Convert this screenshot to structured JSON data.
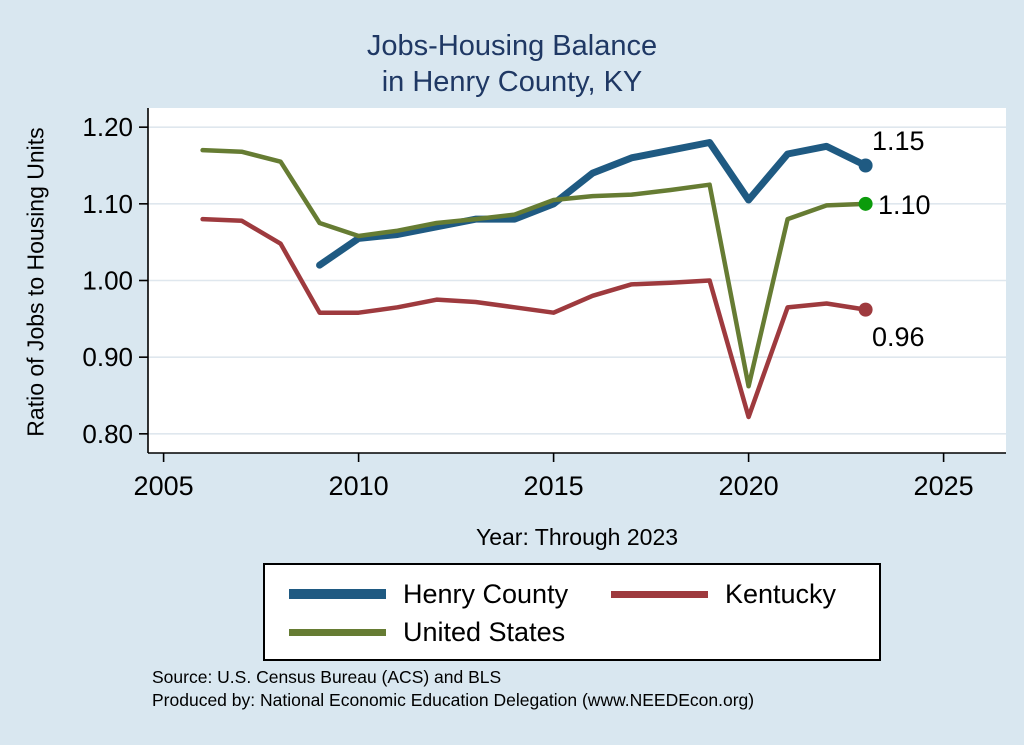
{
  "title": {
    "line1": "Jobs-Housing Balance",
    "line2": "in Henry County, KY"
  },
  "axes": {
    "y_label": "Ratio of Jobs to Housing Units",
    "x_label": "Year: Through 2023",
    "y_ticks": {
      "values": [
        0.8,
        0.9,
        1.0,
        1.1,
        1.2
      ],
      "labels": [
        "0.80",
        "0.90",
        "1.00",
        "1.10",
        "1.20"
      ]
    },
    "x_ticks": {
      "values": [
        2005,
        2010,
        2015,
        2020,
        2025
      ],
      "labels": [
        "2005",
        "2010",
        "2015",
        "2020",
        "2025"
      ]
    }
  },
  "chart_data": {
    "type": "line",
    "title": "Jobs-Housing Balance in Henry County, KY",
    "xlabel": "Year: Through 2023",
    "ylabel": "Ratio of Jobs to Housing Units",
    "xlim": [
      2005,
      2025
    ],
    "ylim": [
      0.8,
      1.2
    ],
    "grid": true,
    "legend_position": "bottom",
    "series": [
      {
        "name": "Henry County",
        "color": "#1f5a82",
        "end_marker_color": "#1f5a82",
        "end_label": "1.15",
        "x": [
          2009,
          2010,
          2011,
          2012,
          2013,
          2014,
          2015,
          2016,
          2017,
          2018,
          2019,
          2020,
          2021,
          2022,
          2023
        ],
        "values": [
          1.02,
          1.055,
          1.06,
          1.07,
          1.08,
          1.08,
          1.1,
          1.14,
          1.16,
          1.17,
          1.18,
          1.105,
          1.165,
          1.175,
          1.15
        ]
      },
      {
        "name": "Kentucky",
        "color": "#9e3a3e",
        "end_marker_color": "#9e3a3e",
        "end_label": "0.96",
        "x": [
          2006,
          2007,
          2008,
          2009,
          2010,
          2011,
          2012,
          2013,
          2014,
          2015,
          2016,
          2017,
          2018,
          2019,
          2020,
          2021,
          2022,
          2023
        ],
        "values": [
          1.08,
          1.078,
          1.048,
          0.958,
          0.958,
          0.965,
          0.975,
          0.972,
          0.965,
          0.958,
          0.98,
          0.995,
          0.997,
          1.0,
          0.822,
          0.965,
          0.97,
          0.962
        ]
      },
      {
        "name": "United States",
        "color": "#667c33",
        "end_marker_color": "#0b9b0b",
        "end_label": "1.10",
        "x": [
          2006,
          2007,
          2008,
          2009,
          2010,
          2011,
          2012,
          2013,
          2014,
          2015,
          2016,
          2017,
          2018,
          2019,
          2020,
          2021,
          2022,
          2023
        ],
        "values": [
          1.17,
          1.168,
          1.155,
          1.075,
          1.058,
          1.065,
          1.075,
          1.08,
          1.086,
          1.105,
          1.11,
          1.112,
          1.118,
          1.125,
          0.862,
          1.08,
          1.098,
          1.1
        ]
      }
    ]
  },
  "annotations": {
    "henry_end": "1.15",
    "us_end": "1.10",
    "ky_end": "0.96"
  },
  "footer": {
    "source": "Source: U.S. Census Bureau (ACS) and BLS",
    "produced": "Produced by: National Economic Education Delegation (www.NEEDEcon.org)"
  },
  "colors": {
    "background": "#d9e7f0",
    "plot_background": "#ffffff",
    "title": "#1f3864",
    "gridline": "#dfe7ee",
    "axis": "#000000"
  }
}
